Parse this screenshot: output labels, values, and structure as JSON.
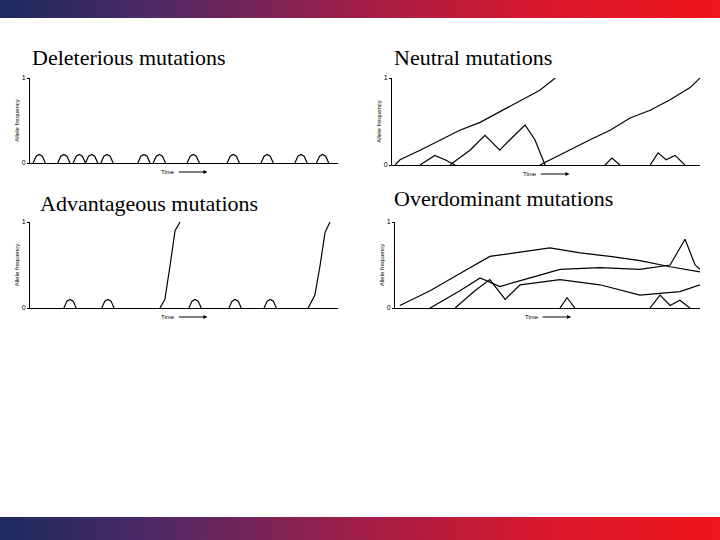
{
  "chart_data": [
    {
      "type": "line",
      "title": "Deleterious mutations",
      "xlabel": "Time",
      "ylabel": "Allele frequency",
      "xlim": [
        0,
        100
      ],
      "ylim": [
        0,
        1
      ],
      "yticks": [
        0,
        1
      ],
      "tick_labels": "y",
      "grid": false,
      "color": "#000000",
      "series": [
        {
          "x": [
            1,
            2,
            3,
            4,
            5
          ],
          "values": [
            0,
            0.08,
            0.1,
            0.08,
            0
          ]
        },
        {
          "x": [
            9,
            10,
            11,
            12,
            13
          ],
          "values": [
            0,
            0.08,
            0.1,
            0.08,
            0
          ]
        },
        {
          "x": [
            14,
            15,
            16,
            17,
            18
          ],
          "values": [
            0,
            0.08,
            0.1,
            0.08,
            0
          ]
        },
        {
          "x": [
            18,
            19,
            20,
            21,
            22
          ],
          "values": [
            0,
            0.08,
            0.1,
            0.08,
            0
          ]
        },
        {
          "x": [
            23,
            24,
            25,
            26,
            27
          ],
          "values": [
            0,
            0.08,
            0.1,
            0.08,
            0
          ]
        },
        {
          "x": [
            35,
            36,
            37,
            38,
            39
          ],
          "values": [
            0,
            0.08,
            0.1,
            0.08,
            0
          ]
        },
        {
          "x": [
            40,
            41,
            42,
            43,
            44
          ],
          "values": [
            0,
            0.08,
            0.1,
            0.08,
            0
          ]
        },
        {
          "x": [
            51,
            52,
            53,
            54,
            55
          ],
          "values": [
            0,
            0.08,
            0.1,
            0.08,
            0
          ]
        },
        {
          "x": [
            64,
            65,
            66,
            67,
            68
          ],
          "values": [
            0,
            0.08,
            0.1,
            0.08,
            0
          ]
        },
        {
          "x": [
            75,
            76,
            77,
            78,
            79
          ],
          "values": [
            0,
            0.08,
            0.1,
            0.08,
            0
          ]
        },
        {
          "x": [
            86,
            87,
            88,
            89,
            90
          ],
          "values": [
            0,
            0.08,
            0.1,
            0.08,
            0
          ]
        },
        {
          "x": [
            93,
            94,
            95,
            96,
            97
          ],
          "values": [
            0,
            0.08,
            0.1,
            0.08,
            0
          ]
        }
      ]
    },
    {
      "type": "line",
      "title": "Neutral mutations",
      "xlabel": "Time",
      "ylabel": "Allele frequency",
      "xlim": [
        0,
        100
      ],
      "ylim": [
        0,
        1
      ],
      "yticks": [
        0,
        1
      ],
      "tick_labels": "y",
      "grid": false,
      "color": "#000000",
      "series": [
        {
          "x": [
            1,
            2.6,
            9.1,
            15.6,
            22,
            28.6,
            35,
            41.6,
            48,
            53
          ],
          "values": [
            0,
            0.06,
            0.17,
            0.29,
            0.4,
            0.49,
            0.61,
            0.74,
            0.86,
            1
          ]
        },
        {
          "x": [
            48,
            51.3,
            57.8,
            64.3,
            70.8,
            77.3,
            83.8,
            90.3,
            96.8,
            100
          ],
          "values": [
            0,
            0.06,
            0.17,
            0.29,
            0.4,
            0.54,
            0.63,
            0.75,
            0.89,
            1
          ]
        },
        {
          "x": [
            18.8,
            25.3,
            30.2,
            35,
            38.3,
            43.2,
            46.4,
            49.7
          ],
          "values": [
            0,
            0.17,
            0.34,
            0.17,
            0.29,
            0.46,
            0.29,
            0
          ]
        },
        {
          "x": [
            9.1,
            13.9,
            17.2,
            20.5
          ],
          "values": [
            0,
            0.11,
            0.06,
            0
          ]
        },
        {
          "x": [
            83.8,
            86.4,
            89,
            91.9,
            95.1
          ],
          "values": [
            0,
            0.14,
            0.06,
            0.11,
            0
          ]
        },
        {
          "x": [
            69.2,
            71.4,
            74
          ],
          "values": [
            0,
            0.08,
            0
          ]
        }
      ]
    },
    {
      "type": "line",
      "title": "Advantageous mutations",
      "xlabel": "Time",
      "ylabel": "Allele frequency",
      "xlim": [
        0,
        100
      ],
      "ylim": [
        0,
        1
      ],
      "yticks": [
        0,
        1
      ],
      "tick_labels": "y",
      "grid": false,
      "color": "#000000",
      "series": [
        {
          "x": [
            11,
            12,
            13,
            14,
            15
          ],
          "values": [
            0,
            0.08,
            0.1,
            0.08,
            0
          ]
        },
        {
          "x": [
            23.3,
            24.3,
            25.3,
            26.3,
            27.3
          ],
          "values": [
            0,
            0.08,
            0.1,
            0.08,
            0
          ]
        },
        {
          "x": [
            51.6,
            52.6,
            53.6,
            54.6,
            55.6
          ],
          "values": [
            0,
            0.08,
            0.1,
            0.08,
            0
          ]
        },
        {
          "x": [
            64.6,
            65.6,
            66.6,
            67.6,
            68.6
          ],
          "values": [
            0,
            0.08,
            0.1,
            0.08,
            0
          ]
        },
        {
          "x": [
            76,
            77,
            78,
            79,
            80
          ],
          "values": [
            0,
            0.08,
            0.1,
            0.08,
            0
          ]
        },
        {
          "x": [
            42.2,
            43.8,
            45.5,
            47.1,
            48.7
          ],
          "values": [
            0,
            0.1,
            0.5,
            0.9,
            1
          ]
        },
        {
          "x": [
            90.3,
            92.5,
            94.2,
            95.8,
            97.4
          ],
          "values": [
            0,
            0.15,
            0.5,
            0.88,
            1
          ]
        }
      ]
    },
    {
      "type": "line",
      "title": "Overdominant mutations",
      "xlabel": "Time",
      "ylabel": "Allele frequency",
      "xlim": [
        0,
        100
      ],
      "ylim": [
        0,
        1
      ],
      "yticks": [
        0,
        1
      ],
      "tick_labels": "y",
      "grid": false,
      "color": "#000000",
      "series": [
        {
          "x": [
            1.6,
            11.5,
            21.3,
            31.1,
            41,
            50.8,
            60.7,
            70.5,
            80.3,
            90.2,
            100
          ],
          "values": [
            0.03,
            0.2,
            0.4,
            0.6,
            0.65,
            0.7,
            0.64,
            0.6,
            0.55,
            0.48,
            0.42
          ]
        },
        {
          "x": [
            11.5,
            21.3,
            27.9,
            34.4,
            44.3,
            54.1,
            67.2,
            80.3,
            90.2,
            95.1,
            98.4,
            100
          ],
          "values": [
            0,
            0.2,
            0.35,
            0.25,
            0.35,
            0.45,
            0.47,
            0.45,
            0.5,
            0.8,
            0.5,
            0.45
          ]
        },
        {
          "x": [
            19.7,
            26.2,
            31.1,
            36.1,
            41,
            54.1,
            67.2,
            80.3,
            93.4,
            100
          ],
          "values": [
            0,
            0.2,
            0.33,
            0.1,
            0.27,
            0.33,
            0.27,
            0.15,
            0.19,
            0.27
          ]
        },
        {
          "x": [
            83.6,
            86.9,
            90.2,
            93.4,
            96.7
          ],
          "values": [
            0,
            0.15,
            0.03,
            0.09,
            0
          ]
        },
        {
          "x": [
            54.1,
            56.4,
            59
          ],
          "values": [
            0,
            0.12,
            0
          ]
        }
      ]
    }
  ]
}
